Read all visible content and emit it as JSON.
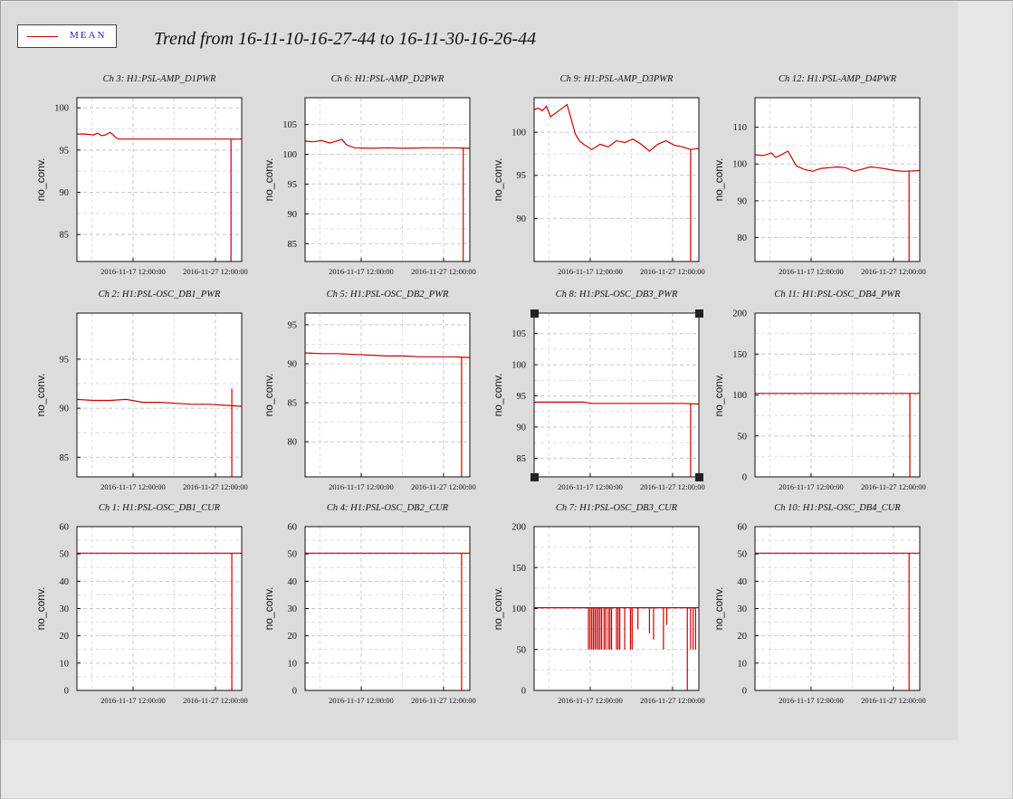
{
  "legend": {
    "label": "MEAN",
    "color": "#d00000"
  },
  "title": "Trend from 16-11-10-16-27-44 to 16-11-30-16-26-44",
  "colors": {
    "line": "#cc0000",
    "grid": "#c8c8c8",
    "background": "#dcdcdc"
  },
  "chart_data": [
    {
      "type": "line",
      "title": "Ch 3: H1:PSL-AMP_D1PWR",
      "ylabel": "no_conv.",
      "ylim": [
        81.8,
        101.2
      ],
      "yticks": [
        85,
        90,
        95,
        100
      ],
      "xticks": [
        "2016-11-17 12:00:00",
        "2016-11-27 12:00:00"
      ],
      "x_days": [
        6.81,
        16.81
      ],
      "x_range": [
        0,
        20
      ],
      "series": [
        {
          "values": [
            [
              0,
              96.9
            ],
            [
              1,
              96.9
            ],
            [
              2,
              96.8
            ],
            [
              2.5,
              97.0
            ],
            [
              3,
              96.7
            ],
            [
              3.5,
              96.8
            ],
            [
              4,
              97.1
            ],
            [
              4.3,
              96.9
            ],
            [
              4.8,
              96.4
            ],
            [
              5.2,
              96.3
            ],
            [
              20,
              96.3
            ]
          ]
        }
      ],
      "drops": [
        {
          "x": 18.7,
          "y": 81.8
        },
        {
          "x": 19.0,
          "y": 96.2
        }
      ]
    },
    {
      "type": "line",
      "title": "Ch 6: H1:PSL-AMP_D2PWR",
      "ylabel": "no_conv.",
      "ylim": [
        82,
        109.5
      ],
      "yticks": [
        85,
        90,
        95,
        100,
        105
      ],
      "xticks": [
        "2016-11-17 12:00:00",
        "2016-11-27 12:00:00"
      ],
      "x_days": [
        6.81,
        16.81
      ],
      "x_range": [
        0,
        20
      ],
      "series": [
        {
          "values": [
            [
              0,
              102.2
            ],
            [
              1,
              102.1
            ],
            [
              2,
              102.3
            ],
            [
              3,
              101.9
            ],
            [
              4,
              102.3
            ],
            [
              4.5,
              102.5
            ],
            [
              5,
              101.6
            ],
            [
              6,
              101.1
            ],
            [
              8,
              101.0
            ],
            [
              10,
              101.1
            ],
            [
              12,
              101.0
            ],
            [
              15,
              101.1
            ],
            [
              18,
              101.1
            ],
            [
              20,
              101.0
            ]
          ]
        }
      ],
      "drops": [
        {
          "x": 19.2,
          "y": 82
        }
      ]
    },
    {
      "type": "line",
      "title": "Ch 9: H1:PSL-AMP_D3PWR",
      "ylabel": "no_conv.",
      "ylim": [
        85,
        104
      ],
      "yticks": [
        90,
        95,
        100
      ],
      "xticks": [
        "2016-11-17 12:00:00",
        "2016-11-27 12:00:00"
      ],
      "x_days": [
        6.81,
        16.81
      ],
      "x_range": [
        0,
        20
      ],
      "series": [
        {
          "values": [
            [
              0,
              102.6
            ],
            [
              0.5,
              102.8
            ],
            [
              1,
              102.5
            ],
            [
              1.5,
              103.0
            ],
            [
              2,
              101.8
            ],
            [
              3,
              102.5
            ],
            [
              4,
              103.2
            ],
            [
              4.5,
              101.5
            ],
            [
              5,
              99.8
            ],
            [
              5.5,
              99.0
            ],
            [
              6,
              98.6
            ],
            [
              7,
              98.0
            ],
            [
              8,
              98.6
            ],
            [
              9,
              98.3
            ],
            [
              10,
              99.0
            ],
            [
              11,
              98.8
            ],
            [
              12,
              99.2
            ],
            [
              13,
              98.6
            ],
            [
              14,
              97.8
            ],
            [
              15,
              98.6
            ],
            [
              16,
              99.0
            ],
            [
              17,
              98.5
            ],
            [
              18,
              98.3
            ],
            [
              19,
              98.0
            ],
            [
              20,
              98.1
            ]
          ]
        }
      ],
      "drops": [
        {
          "x": 19.0,
          "y": 85
        }
      ]
    },
    {
      "type": "line",
      "title": "Ch 12: H1:PSL-AMP_D4PWR",
      "ylabel": "no_conv.",
      "ylim": [
        73.5,
        118
      ],
      "yticks": [
        80,
        90,
        100,
        110
      ],
      "xticks": [
        "2016-11-17 12:00:00",
        "2016-11-27 12:00:00"
      ],
      "x_days": [
        6.81,
        16.81
      ],
      "x_range": [
        0,
        20
      ],
      "series": [
        {
          "values": [
            [
              0,
              102.5
            ],
            [
              1,
              102.3
            ],
            [
              2,
              103.0
            ],
            [
              2.5,
              101.8
            ],
            [
              3,
              102.3
            ],
            [
              4,
              103.5
            ],
            [
              4.5,
              101.5
            ],
            [
              5,
              99.5
            ],
            [
              6,
              98.5
            ],
            [
              7,
              98.0
            ],
            [
              8,
              98.8
            ],
            [
              9,
              99.0
            ],
            [
              10,
              99.2
            ],
            [
              11,
              99.0
            ],
            [
              12,
              98.0
            ],
            [
              13,
              98.6
            ],
            [
              14,
              99.2
            ],
            [
              15,
              99.0
            ],
            [
              16,
              98.6
            ],
            [
              17,
              98.2
            ],
            [
              18,
              98.0
            ],
            [
              20,
              98.2
            ]
          ]
        }
      ],
      "drops": [
        {
          "x": 18.7,
          "y": 73.5
        }
      ]
    },
    {
      "type": "line",
      "title": "Ch 2: H1:PSL-OSC_DB1_PWR",
      "ylabel": "no_conv.",
      "ylim": [
        83,
        99.7
      ],
      "yticks": [
        85,
        90,
        95
      ],
      "xticks": [
        "2016-11-17 12:00:00",
        "2016-11-27 12:00:00"
      ],
      "x_days": [
        6.81,
        16.81
      ],
      "x_range": [
        0,
        20
      ],
      "series": [
        {
          "values": [
            [
              0,
              90.9
            ],
            [
              2,
              90.8
            ],
            [
              4,
              90.8
            ],
            [
              6,
              90.9
            ],
            [
              8,
              90.6
            ],
            [
              10,
              90.6
            ],
            [
              12,
              90.5
            ],
            [
              14,
              90.4
            ],
            [
              16,
              90.4
            ],
            [
              18,
              90.3
            ],
            [
              20,
              90.2
            ]
          ]
        }
      ],
      "drops": [
        {
          "x": 18.8,
          "y": 83
        },
        {
          "x": 18.8,
          "y": 92.0
        }
      ]
    },
    {
      "type": "line",
      "title": "Ch 5: H1:PSL-OSC_DB2_PWR",
      "ylabel": "no_conv.",
      "ylim": [
        75.5,
        96.5
      ],
      "yticks": [
        80,
        85,
        90,
        95
      ],
      "xticks": [
        "2016-11-17 12:00:00",
        "2016-11-27 12:00:00"
      ],
      "x_days": [
        6.81,
        16.81
      ],
      "x_range": [
        0,
        20
      ],
      "series": [
        {
          "values": [
            [
              0,
              91.4
            ],
            [
              2,
              91.3
            ],
            [
              4,
              91.3
            ],
            [
              6,
              91.2
            ],
            [
              8,
              91.1
            ],
            [
              10,
              91.0
            ],
            [
              12,
              91.0
            ],
            [
              14,
              90.9
            ],
            [
              16,
              90.9
            ],
            [
              18,
              90.9
            ],
            [
              20,
              90.8
            ]
          ]
        }
      ],
      "drops": [
        {
          "x": 19.0,
          "y": 75.5
        }
      ]
    },
    {
      "type": "line",
      "title": "Ch 8: H1:PSL-OSC_DB3_PWR",
      "ylabel": "no_conv.",
      "ylim": [
        82,
        108.3
      ],
      "yticks": [
        85,
        90,
        95,
        100,
        105
      ],
      "xticks": [
        "2016-11-17 12:00:00",
        "2016-11-27 12:00:00"
      ],
      "x_days": [
        6.81,
        16.81
      ],
      "x_range": [
        0,
        20
      ],
      "series": [
        {
          "values": [
            [
              0,
              94.0
            ],
            [
              6,
              94.0
            ],
            [
              7,
              93.8
            ],
            [
              12,
              93.8
            ],
            [
              18,
              93.8
            ],
            [
              20,
              93.7
            ]
          ]
        }
      ],
      "drops": [
        {
          "x": 19.0,
          "y": 82
        }
      ],
      "selected": true
    },
    {
      "type": "line",
      "title": "Ch 11: H1:PSL-OSC_DB4_PWR",
      "ylabel": "no_conv.",
      "ylim": [
        0,
        200
      ],
      "yticks": [
        0,
        50,
        100,
        150,
        200
      ],
      "xticks": [
        "2016-11-17 12:00:00",
        "2016-11-27 12:00:00"
      ],
      "x_days": [
        6.81,
        16.81
      ],
      "x_range": [
        0,
        20
      ],
      "series": [
        {
          "values": [
            [
              0,
              102
            ],
            [
              20,
              102
            ]
          ]
        }
      ],
      "drops": [
        {
          "x": 18.8,
          "y": 0
        }
      ]
    },
    {
      "type": "line",
      "title": "Ch 1: H1:PSL-OSC_DB1_CUR",
      "ylabel": "no_conv.",
      "ylim": [
        0,
        60
      ],
      "yticks": [
        0,
        10,
        20,
        30,
        40,
        50,
        60
      ],
      "xticks": [
        "2016-11-17 12:00:00",
        "2016-11-27 12:00:00"
      ],
      "x_days": [
        6.81,
        16.81
      ],
      "x_range": [
        0,
        20
      ],
      "series": [
        {
          "values": [
            [
              0,
              50.3
            ],
            [
              20,
              50.3
            ]
          ]
        }
      ],
      "drops": [
        {
          "x": 18.8,
          "y": 0
        }
      ]
    },
    {
      "type": "line",
      "title": "Ch 4: H1:PSL-OSC_DB2_CUR",
      "ylabel": "no_conv.",
      "ylim": [
        0,
        60
      ],
      "yticks": [
        0,
        10,
        20,
        30,
        40,
        50,
        60
      ],
      "xticks": [
        "2016-11-17 12:00:00",
        "2016-11-27 12:00:00"
      ],
      "x_days": [
        6.81,
        16.81
      ],
      "x_range": [
        0,
        20
      ],
      "series": [
        {
          "values": [
            [
              0,
              50.3
            ],
            [
              20,
              50.3
            ]
          ]
        }
      ],
      "drops": [
        {
          "x": 19.0,
          "y": 0
        }
      ]
    },
    {
      "type": "line",
      "title": "Ch 7: H1:PSL-OSC_DB3_CUR",
      "ylabel": "no_conv.",
      "ylim": [
        0,
        200
      ],
      "yticks": [
        0,
        50,
        100,
        150,
        200
      ],
      "xticks": [
        "2016-11-17 12:00:00",
        "2016-11-27 12:00:00"
      ],
      "x_days": [
        6.81,
        16.81
      ],
      "x_range": [
        0,
        20
      ],
      "series": [
        {
          "values": [
            [
              0,
              101
            ],
            [
              20,
              101
            ]
          ]
        }
      ],
      "drops": [
        {
          "x": 6.6,
          "y": 50
        },
        {
          "x": 6.8,
          "y": 50
        },
        {
          "x": 7.0,
          "y": 50
        },
        {
          "x": 7.2,
          "y": 50
        },
        {
          "x": 7.4,
          "y": 50
        },
        {
          "x": 7.6,
          "y": 50
        },
        {
          "x": 7.8,
          "y": 50
        },
        {
          "x": 8.0,
          "y": 50
        },
        {
          "x": 8.2,
          "y": 50
        },
        {
          "x": 8.5,
          "y": 50
        },
        {
          "x": 8.7,
          "y": 50
        },
        {
          "x": 9.0,
          "y": 50
        },
        {
          "x": 9.2,
          "y": 50
        },
        {
          "x": 9.4,
          "y": 50
        },
        {
          "x": 10.0,
          "y": 50
        },
        {
          "x": 10.2,
          "y": 50
        },
        {
          "x": 10.4,
          "y": 50
        },
        {
          "x": 11.0,
          "y": 50
        },
        {
          "x": 11.7,
          "y": 50
        },
        {
          "x": 11.9,
          "y": 50
        },
        {
          "x": 12.6,
          "y": 75
        },
        {
          "x": 14.0,
          "y": 70
        },
        {
          "x": 14.5,
          "y": 62
        },
        {
          "x": 15.7,
          "y": 50
        },
        {
          "x": 16.1,
          "y": 80
        },
        {
          "x": 18.6,
          "y": 0
        },
        {
          "x": 19.0,
          "y": 50
        },
        {
          "x": 19.3,
          "y": 50
        },
        {
          "x": 19.6,
          "y": 50
        }
      ]
    },
    {
      "type": "line",
      "title": "Ch 10: H1:PSL-OSC_DB4_CUR",
      "ylabel": "no_conv.",
      "ylim": [
        0,
        60
      ],
      "yticks": [
        0,
        10,
        20,
        30,
        40,
        50,
        60
      ],
      "xticks": [
        "2016-11-17 12:00:00",
        "2016-11-27 12:00:00"
      ],
      "x_days": [
        6.81,
        16.81
      ],
      "x_range": [
        0,
        20
      ],
      "series": [
        {
          "values": [
            [
              0,
              50.3
            ],
            [
              20,
              50.3
            ]
          ]
        }
      ],
      "drops": [
        {
          "x": 18.7,
          "y": 0
        }
      ]
    }
  ]
}
